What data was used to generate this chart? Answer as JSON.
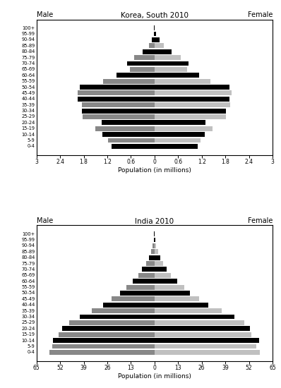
{
  "korea": {
    "title": "Korea, South 2010",
    "age_groups": [
      "0-4",
      "5-9",
      "10-14",
      "15-19",
      "20-24",
      "25-29",
      "30-34",
      "35-39",
      "40-44",
      "45-49",
      "50-54",
      "55-59",
      "60-64",
      "65-69",
      "70-74",
      "75-79",
      "80-84",
      "85-89",
      "90-94",
      "95-99",
      "100+"
    ],
    "male": [
      1.1,
      1.18,
      1.32,
      1.5,
      1.35,
      1.82,
      1.85,
      1.85,
      1.95,
      1.95,
      1.9,
      1.3,
      0.96,
      0.63,
      0.7,
      0.52,
      0.3,
      0.15,
      0.07,
      0.02,
      0.01
    ],
    "female": [
      1.1,
      1.16,
      1.28,
      1.47,
      1.3,
      1.82,
      1.82,
      1.93,
      1.9,
      1.95,
      1.9,
      1.42,
      1.13,
      0.83,
      0.87,
      0.67,
      0.43,
      0.23,
      0.12,
      0.03,
      0.01
    ],
    "male_colors": [
      "#000000",
      "#888888",
      "#000000",
      "#888888",
      "#000000",
      "#888888",
      "#000000",
      "#888888",
      "#000000",
      "#888888",
      "#000000",
      "#888888",
      "#000000",
      "#888888",
      "#000000",
      "#888888",
      "#000000",
      "#888888",
      "#000000",
      "#000000",
      "#000000"
    ],
    "female_colors": [
      "#000000",
      "#c0c0c0",
      "#000000",
      "#c0c0c0",
      "#000000",
      "#c0c0c0",
      "#000000",
      "#c0c0c0",
      "#000000",
      "#c0c0c0",
      "#000000",
      "#c0c0c0",
      "#000000",
      "#c0c0c0",
      "#000000",
      "#c0c0c0",
      "#000000",
      "#c0c0c0",
      "#000000",
      "#000000",
      "#000000"
    ],
    "xlim": 3.0,
    "xtick_pos": [
      -3.0,
      -2.4,
      -1.8,
      -1.2,
      -0.6,
      0.0,
      0.6,
      1.2,
      1.8,
      2.4,
      3.0
    ],
    "xtick_labels": [
      "3",
      "2.4",
      "1.8",
      "1.2",
      "0.6",
      "0",
      "0.6",
      "1.2",
      "1.8",
      "2.4",
      "3"
    ],
    "xlabel": "Population (in millions)"
  },
  "india": {
    "title": "India 2010",
    "age_groups": [
      "0-4",
      "5-9",
      "10-14",
      "15-19",
      "20-24",
      "25-29",
      "30-34",
      "35-39",
      "40-44",
      "45-49",
      "50-54",
      "55-59",
      "60-64",
      "65-69",
      "70-74",
      "75-79",
      "80-84",
      "85-89",
      "90-94",
      "95-99",
      "100+"
    ],
    "male": [
      58.0,
      56.5,
      56.0,
      53.0,
      51.0,
      47.0,
      41.0,
      34.5,
      28.5,
      23.5,
      19.0,
      15.5,
      12.0,
      9.0,
      7.0,
      4.8,
      3.2,
      2.0,
      1.2,
      0.5,
      0.3
    ],
    "female": [
      58.0,
      56.0,
      57.5,
      53.5,
      52.5,
      49.5,
      44.0,
      37.0,
      29.5,
      24.5,
      19.5,
      16.5,
      12.5,
      9.0,
      6.5,
      4.8,
      3.0,
      1.8,
      1.0,
      0.4,
      0.2
    ],
    "male_colors": [
      "#888888",
      "#888888",
      "#000000",
      "#888888",
      "#000000",
      "#888888",
      "#000000",
      "#888888",
      "#000000",
      "#888888",
      "#000000",
      "#888888",
      "#000000",
      "#888888",
      "#000000",
      "#888888",
      "#000000",
      "#888888",
      "#888888",
      "#000000",
      "#000000"
    ],
    "female_colors": [
      "#c0c0c0",
      "#c0c0c0",
      "#000000",
      "#c0c0c0",
      "#000000",
      "#c0c0c0",
      "#000000",
      "#c0c0c0",
      "#000000",
      "#c0c0c0",
      "#000000",
      "#c0c0c0",
      "#000000",
      "#c0c0c0",
      "#000000",
      "#c0c0c0",
      "#000000",
      "#c0c0c0",
      "#c0c0c0",
      "#000000",
      "#000000"
    ],
    "xlim": 65.0,
    "xtick_pos": [
      -65.0,
      -52.0,
      -39.0,
      -26.0,
      -13.0,
      0.0,
      13.0,
      26.0,
      39.0,
      52.0,
      65.0
    ],
    "xtick_labels": [
      "65",
      "52",
      "39",
      "26",
      "13",
      "0",
      "13",
      "26",
      "39",
      "52",
      "65"
    ],
    "xlabel": "Population (in millions)"
  },
  "fig_width": 3.98,
  "fig_height": 5.5,
  "dpi": 100
}
